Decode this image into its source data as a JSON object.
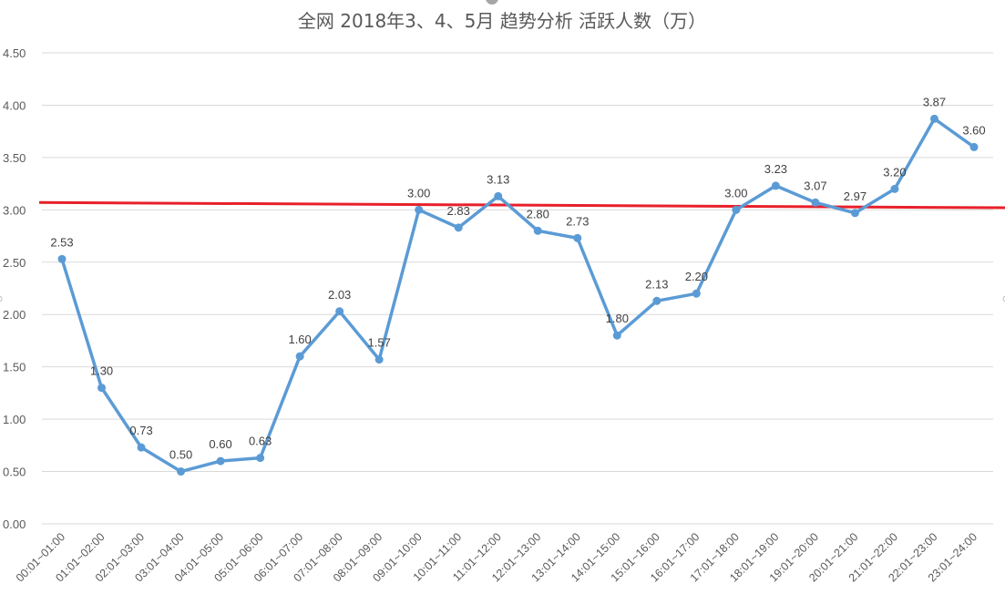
{
  "chart_data": {
    "type": "line",
    "title": "全网 2018年3、4、5月 趋势分析 活跃人数（万）",
    "xlabel": "",
    "ylabel": "",
    "ylim": [
      0,
      4.5
    ],
    "yticks": [
      "0.00",
      "0.50",
      "1.00",
      "1.50",
      "2.00",
      "2.50",
      "3.00",
      "3.50",
      "4.00",
      "4.50"
    ],
    "grid": true,
    "legend": "none",
    "categories": [
      "00:01~01:00",
      "01:01~02:00",
      "02:01~03:00",
      "03:01~04:00",
      "04:01~05:00",
      "05:01~06:00",
      "06:01~07:00",
      "07:01~08:00",
      "08:01~09:00",
      "09:01~10:00",
      "10:01~11:00",
      "11:01~12:00",
      "12:01~13:00",
      "13:01~14:00",
      "14:01~15:00",
      "15:01~16:00",
      "16:01~17:00",
      "17:01~18:00",
      "18:01~19:00",
      "19:01~20:00",
      "20:01~21:00",
      "21:01~22:00",
      "22:01~23:00",
      "23:01~24:00"
    ],
    "series": [
      {
        "name": "活跃人数（万）",
        "color": "#5B9BD5",
        "values": [
          2.53,
          1.3,
          0.73,
          0.5,
          0.6,
          0.63,
          1.6,
          2.03,
          1.57,
          3.0,
          2.83,
          3.13,
          2.8,
          2.73,
          1.8,
          2.13,
          2.2,
          3.0,
          3.23,
          3.07,
          2.97,
          3.2,
          3.87,
          3.6
        ]
      }
    ],
    "annotations": [
      {
        "type": "reference-line",
        "color": "#E8202A",
        "y_start": 3.07,
        "y_end": 3.02,
        "description": "red average/trend line"
      }
    ]
  }
}
